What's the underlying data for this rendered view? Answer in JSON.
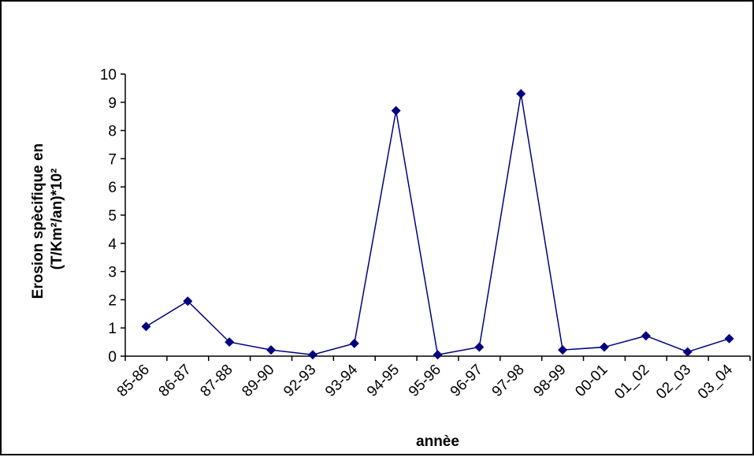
{
  "chart_data": {
    "type": "line",
    "title": "",
    "xlabel": "annèe",
    "ylabel_lines": [
      "Erosion spècifique en",
      "(T/Km²/an)*10²"
    ],
    "categories": [
      "85-86",
      "86-87",
      "87-88",
      "89-90",
      "92-93",
      "93-94",
      "94-95",
      "95-96",
      "96-97",
      "97-98",
      "98-99",
      "00-01",
      "01_02",
      "02_03",
      "03_04"
    ],
    "series": [
      {
        "values": [
          1.05,
          1.95,
          0.5,
          0.22,
          0.05,
          0.45,
          8.7,
          0.05,
          0.32,
          9.3,
          0.22,
          0.32,
          0.72,
          0.15,
          0.62
        ],
        "color": "#000080"
      }
    ],
    "ylim": [
      0,
      10
    ],
    "yticks": [
      "0",
      "1",
      "2",
      "3",
      "4",
      "5",
      "6",
      "7",
      "8",
      "9",
      "10"
    ],
    "grid": false,
    "legend": "none",
    "marker": "diamond"
  }
}
